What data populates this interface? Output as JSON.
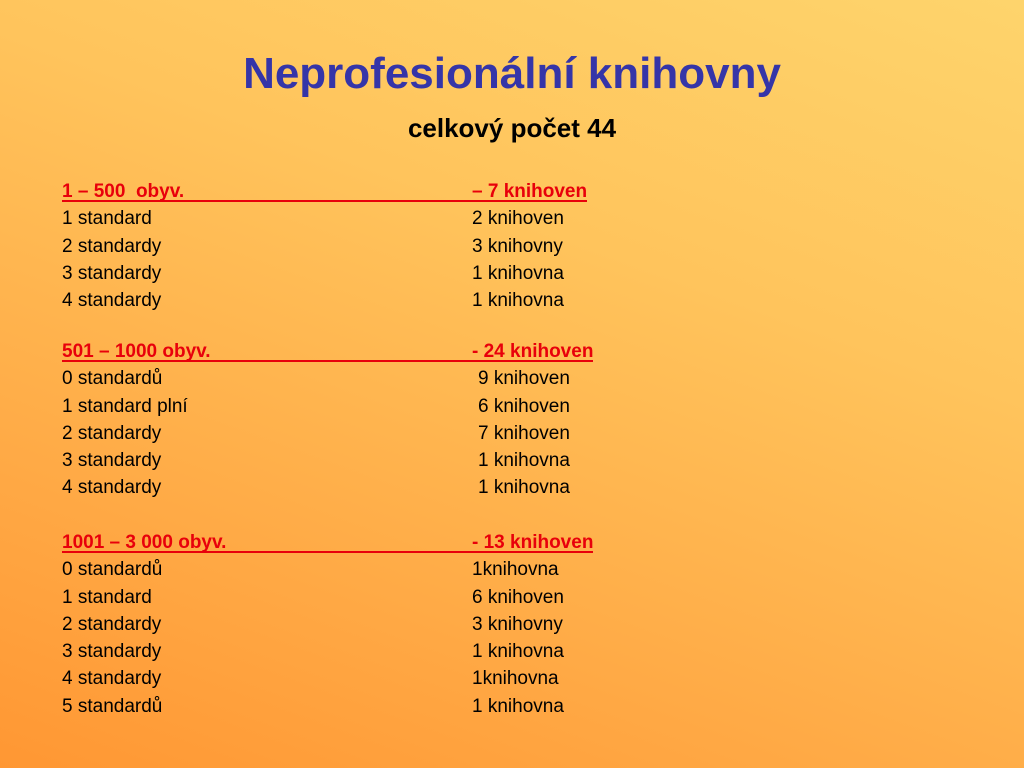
{
  "title": "Neprofesionální knihovny",
  "subtitle": "celkový počet 44",
  "sections": [
    {
      "label": "1 – 500  obyv.",
      "count": "– 7 knihoven",
      "rows": [
        [
          "1 standard",
          "2 knihoven"
        ],
        [
          "2 standardy",
          "3 knihovny"
        ],
        [
          "3 standardy",
          "1 knihovna"
        ],
        [
          "4 standardy",
          "1 knihovna"
        ]
      ]
    },
    {
      "label": "501 – 1000 obyv.",
      "count": "- 24 knihoven",
      "rows": [
        [
          "0 standardů",
          "9 knihoven"
        ],
        [
          "1 standard plní",
          "6 knihoven"
        ],
        [
          "2 standardy",
          "7 knihoven"
        ],
        [
          "3 standardy",
          "1 knihovna"
        ],
        [
          "4 standardy",
          "1 knihovna"
        ]
      ]
    },
    {
      "label": "1001 – 3 000 obyv.",
      "count": "- 13 knihoven",
      "rows": [
        [
          "0 standardů",
          "1knihovna"
        ],
        [
          "1 standard",
          "6 knihoven"
        ],
        [
          "2 standardy",
          "3 knihovny"
        ],
        [
          "3 standardy",
          "1 knihovna"
        ],
        [
          "4 standardy",
          "1knihovna"
        ],
        [
          "5 standardů",
          "1 knihovna"
        ]
      ]
    }
  ]
}
